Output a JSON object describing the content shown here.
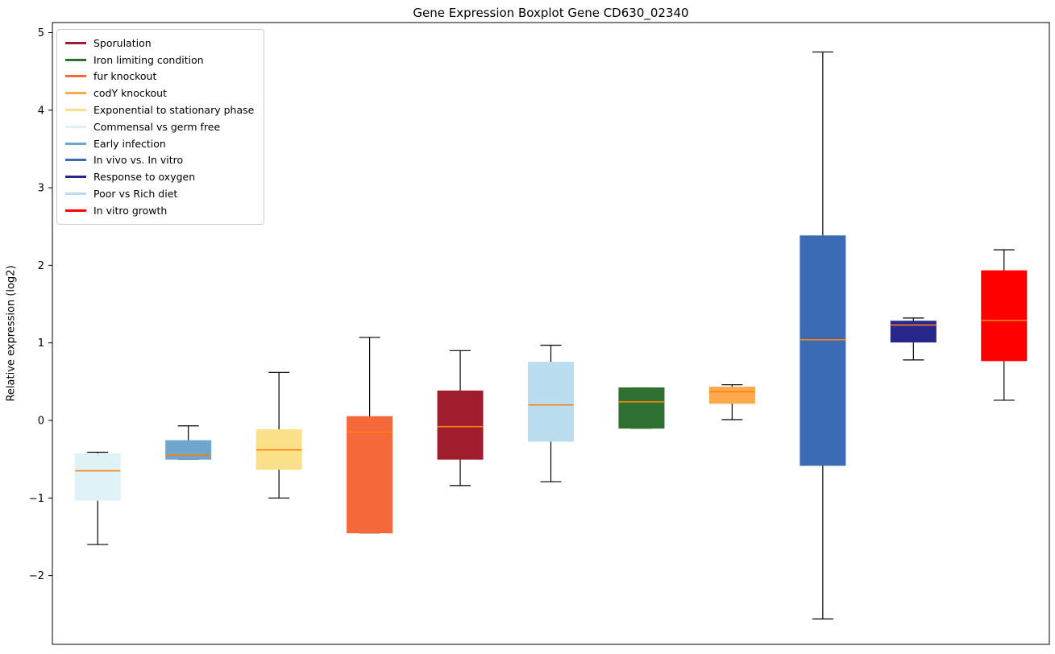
{
  "title": "Gene Expression Boxplot Gene CD630_02340",
  "ylabel": "Relative expression (log2)",
  "legend": {
    "items": [
      {
        "label": "Sporulation",
        "color": "#a01d2e"
      },
      {
        "label": "Iron limiting condition",
        "color": "#2e7031"
      },
      {
        "label": "fur knockout",
        "color": "#f4683a"
      },
      {
        "label": "codY knockout",
        "color": "#ffa94e"
      },
      {
        "label": "Exponential to stationary phase",
        "color": "#fbe08a"
      },
      {
        "label": "Commensal vs germ free",
        "color": "#dff3f7"
      },
      {
        "label": "Early infection",
        "color": "#6ea6cd"
      },
      {
        "label": "In vivo vs. In vitro",
        "color": "#3c6bb5"
      },
      {
        "label": "Response to oxygen",
        "color": "#26268c"
      },
      {
        "label": "Poor vs Rich diet",
        "color": "#b9dcee"
      },
      {
        "label": "In vitro growth",
        "color": "#ff0000"
      }
    ]
  },
  "chart_data": {
    "type": "boxplot",
    "title": "Gene Expression Boxplot Gene CD630_02340",
    "ylabel": "Relative expression (log2)",
    "ylim": [
      -2.9,
      5.13
    ],
    "yticks": [
      -2,
      -1,
      0,
      1,
      2,
      3,
      4,
      5
    ],
    "grid": false,
    "legend_position": "upper-left",
    "median_color": "#ff7f0e",
    "boxes": [
      {
        "condition": "Commensal vs germ free",
        "color": "#dff3f7",
        "whisker_low": -1.6,
        "q1": -1.03,
        "median": -0.65,
        "q3": -0.43,
        "whisker_high": -0.41
      },
      {
        "condition": "Early infection",
        "color": "#6ea6cd",
        "whisker_low": -0.5,
        "q1": -0.5,
        "median": -0.45,
        "q3": -0.26,
        "whisker_high": -0.07
      },
      {
        "condition": "Exponential to stationary phase",
        "color": "#fbe08a",
        "whisker_low": -1.0,
        "q1": -0.63,
        "median": -0.38,
        "q3": -0.12,
        "whisker_high": 0.62
      },
      {
        "condition": "fur knockout",
        "color": "#f4683a",
        "whisker_low": -1.45,
        "q1": -1.45,
        "median": -0.15,
        "q3": 0.05,
        "whisker_high": 1.07
      },
      {
        "condition": "Sporulation",
        "color": "#a01d2e",
        "whisker_low": -0.84,
        "q1": -0.5,
        "median": -0.08,
        "q3": 0.38,
        "whisker_high": 0.9
      },
      {
        "condition": "Poor vs Rich diet",
        "color": "#b9dcee",
        "whisker_low": -0.79,
        "q1": -0.27,
        "median": 0.2,
        "q3": 0.75,
        "whisker_high": 0.97
      },
      {
        "condition": "Iron limiting condition",
        "color": "#2e7031",
        "whisker_low": -0.1,
        "q1": -0.1,
        "median": 0.24,
        "q3": 0.42,
        "whisker_high": 0.42
      },
      {
        "condition": "codY knockout",
        "color": "#ffa94e",
        "whisker_low": 0.01,
        "q1": 0.22,
        "median": 0.37,
        "q3": 0.43,
        "whisker_high": 0.46
      },
      {
        "condition": "In vivo vs. In vitro",
        "color": "#3c6bb5",
        "whisker_low": -2.56,
        "q1": -0.58,
        "median": 1.04,
        "q3": 2.38,
        "whisker_high": 4.75
      },
      {
        "condition": "Response to oxygen",
        "color": "#26268c",
        "whisker_low": 0.78,
        "q1": 1.01,
        "median": 1.23,
        "q3": 1.28,
        "whisker_high": 1.32
      },
      {
        "condition": "In vitro growth",
        "color": "#ff0000",
        "whisker_low": 0.26,
        "q1": 0.77,
        "median": 1.29,
        "q3": 1.93,
        "whisker_high": 2.2
      }
    ]
  }
}
